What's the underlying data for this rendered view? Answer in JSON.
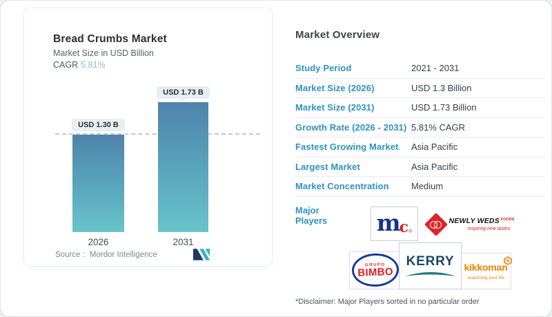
{
  "left_card": {
    "title": "Bread Crumbs Market",
    "subtitle": "Market Size in USD Billion",
    "cagr_label": "CAGR",
    "cagr_value": "5.81%",
    "source_label": "Source :",
    "source_value": "Mordor Intelligence",
    "logo_name": "mordor-intelligence-logo"
  },
  "chart_data": {
    "type": "bar",
    "title": "Bread Crumbs Market",
    "subtitle": "Market Size in USD Billion",
    "categories": [
      "2026",
      "2031"
    ],
    "values": [
      1.3,
      1.73
    ],
    "value_labels": [
      "USD 1.30 B",
      "USD 1.73 B"
    ],
    "unit": "USD Billion",
    "cagr_percent": 5.81,
    "ylim": [
      0,
      1.73
    ],
    "grid": "off",
    "dashed_reference_line_at": 1.3,
    "bar_gradient_top": "#4f83ab",
    "bar_gradient_bottom": "#68c4c9",
    "legend": "none"
  },
  "overview": {
    "heading": "Market Overview",
    "accent_color": "#2e92c1",
    "rows": [
      {
        "label": "Study Period",
        "value": "2021 - 2031"
      },
      {
        "label": "Market Size (2026)",
        "value": "USD 1.3 Billion"
      },
      {
        "label": "Market Size (2031)",
        "value": "USD 1.73 Billion"
      },
      {
        "label": "Growth Rate (2026 - 2031)",
        "value": "5.81% CAGR"
      },
      {
        "label": "Fastest Growing Market",
        "value": "Asia Pacific"
      },
      {
        "label": "Largest Market",
        "value": "Asia Pacific"
      },
      {
        "label": "Market Concentration",
        "value": "Medium"
      }
    ],
    "major_players_label": "Major Players",
    "major_players": [
      "McCormick",
      "Newly Weds Foods",
      "Grupo Bimbo",
      "Kerry",
      "Kikkoman"
    ],
    "disclaimer": "*Disclaimer: Major Players sorted in no particular order"
  },
  "logos": {
    "mccormick": {
      "m": "m",
      "c": "c",
      "reg": "®"
    },
    "newly_weds": {
      "name": "NEWLY WEDS",
      "suffix": "FOODS",
      "tagline": "inspiring new tastes"
    },
    "bimbo": {
      "top": "GRUPO",
      "main": "BIMBO"
    },
    "kerry": {
      "text": "KERRY"
    },
    "kikkoman": {
      "text": "kikkoman",
      "tagline": "seasoning your life"
    }
  }
}
